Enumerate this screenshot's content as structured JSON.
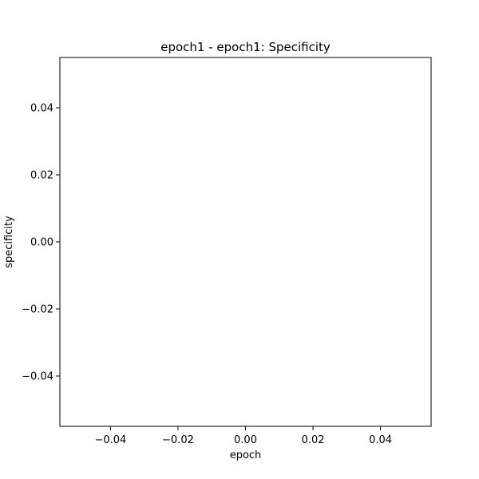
{
  "chart_data": {
    "type": "line",
    "title": "epoch1 - epoch1: Specificity",
    "xlabel": "epoch",
    "ylabel": "specificity",
    "x": [],
    "series": [],
    "xlim": [
      -0.055,
      0.055
    ],
    "ylim": [
      -0.055,
      0.055
    ],
    "xticks": [
      -0.04,
      -0.02,
      0.0,
      0.02,
      0.04
    ],
    "yticks": [
      -0.04,
      -0.02,
      0.0,
      0.02,
      0.04
    ],
    "xtick_labels": [
      "−0.04",
      "−0.02",
      "0.00",
      "0.02",
      "0.04"
    ],
    "ytick_labels": [
      "−0.04",
      "−0.02",
      "0.00",
      "0.02",
      "0.04"
    ],
    "grid": false,
    "legend": "none"
  }
}
